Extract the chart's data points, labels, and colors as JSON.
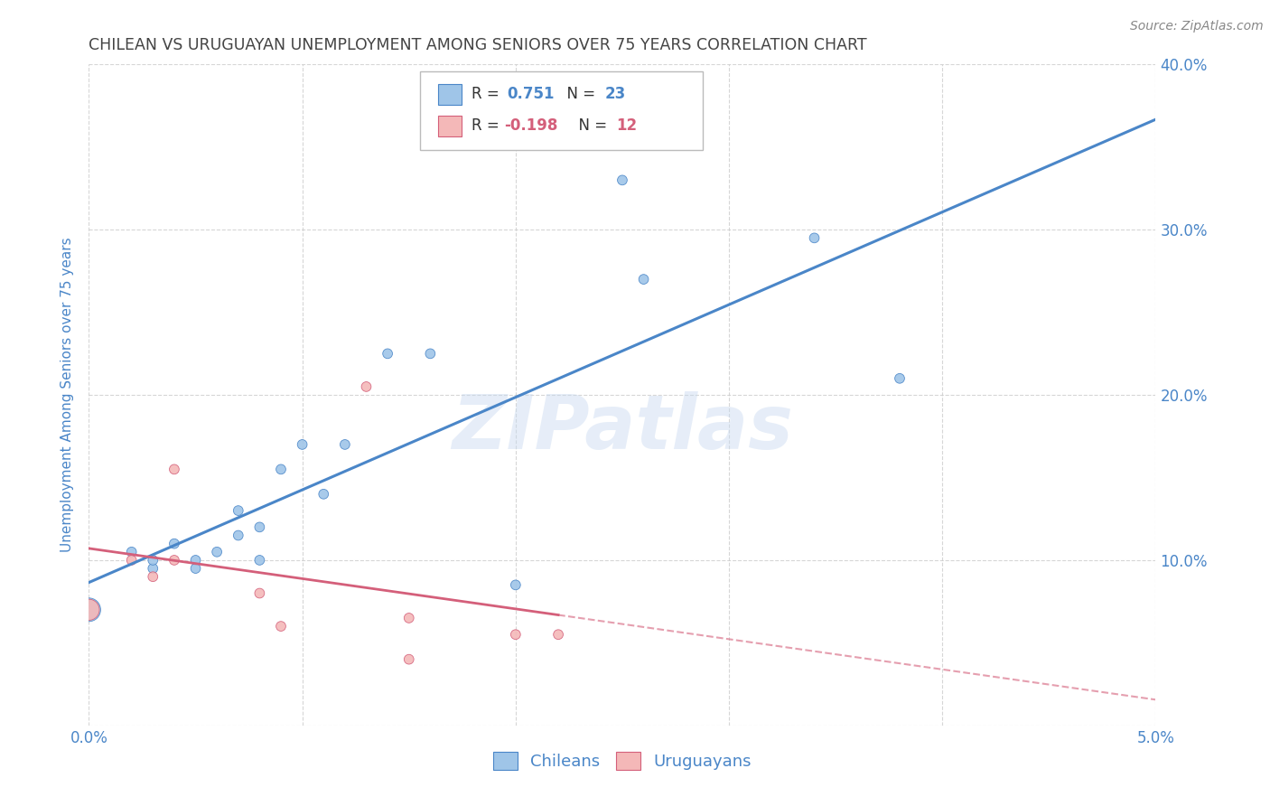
{
  "title": "CHILEAN VS URUGUAYAN UNEMPLOYMENT AMONG SENIORS OVER 75 YEARS CORRELATION CHART",
  "source": "Source: ZipAtlas.com",
  "ylabel": "Unemployment Among Seniors over 75 years",
  "xlim": [
    0.0,
    0.05
  ],
  "ylim": [
    0.0,
    0.4
  ],
  "xticks": [
    0.0,
    0.01,
    0.02,
    0.03,
    0.04,
    0.05
  ],
  "xticklabels": [
    "0.0%",
    "",
    "",
    "",
    "",
    "5.0%"
  ],
  "yticks_right": [
    0.1,
    0.2,
    0.3,
    0.4
  ],
  "yticklabels_right": [
    "10.0%",
    "20.0%",
    "30.0%",
    "40.0%"
  ],
  "chilean_x": [
    0.0,
    0.002,
    0.003,
    0.003,
    0.004,
    0.005,
    0.005,
    0.006,
    0.007,
    0.007,
    0.008,
    0.008,
    0.009,
    0.01,
    0.011,
    0.012,
    0.014,
    0.016,
    0.02,
    0.025,
    0.026,
    0.034,
    0.038
  ],
  "chilean_y": [
    0.07,
    0.105,
    0.095,
    0.1,
    0.11,
    0.1,
    0.095,
    0.105,
    0.13,
    0.115,
    0.1,
    0.12,
    0.155,
    0.17,
    0.14,
    0.17,
    0.225,
    0.225,
    0.085,
    0.33,
    0.27,
    0.295,
    0.21
  ],
  "chilean_sizes": [
    350,
    60,
    60,
    60,
    60,
    60,
    60,
    60,
    60,
    60,
    60,
    60,
    60,
    60,
    60,
    60,
    60,
    60,
    60,
    60,
    60,
    60,
    60
  ],
  "uruguayan_x": [
    0.0,
    0.002,
    0.003,
    0.004,
    0.004,
    0.008,
    0.009,
    0.013,
    0.015,
    0.015,
    0.02,
    0.022
  ],
  "uruguayan_y": [
    0.07,
    0.1,
    0.09,
    0.155,
    0.1,
    0.08,
    0.06,
    0.205,
    0.065,
    0.04,
    0.055,
    0.055
  ],
  "uruguayan_sizes": [
    280,
    60,
    60,
    60,
    60,
    60,
    60,
    60,
    60,
    60,
    60,
    60
  ],
  "chilean_color": "#9fc5e8",
  "uruguayan_color": "#f4b8b8",
  "chilean_line_color": "#4a86c8",
  "uruguayan_line_color": "#d45f7a",
  "watermark": "ZIPatlas",
  "background_color": "#ffffff",
  "grid_color": "#cccccc",
  "title_color": "#444444",
  "tick_color": "#4a86c8",
  "legend_r_color_chilean": "#4a86c8",
  "legend_r_color_uruguayan": "#d45f7a"
}
